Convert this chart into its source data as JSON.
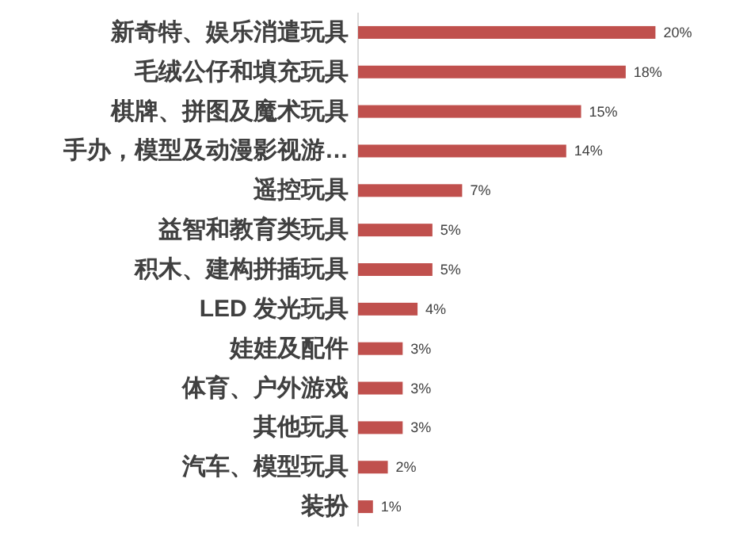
{
  "chart_data": {
    "type": "bar",
    "orientation": "horizontal",
    "categories": [
      "新奇特、娱乐消遣玩具",
      "毛绒公仔和填充玩具",
      "棋牌、拼图及魔术玩具",
      "手办，模型及动漫影视游…",
      "遥控玩具",
      "益智和教育类玩具",
      "积木、建构拼插玩具",
      "LED 发光玩具",
      "娃娃及配件",
      "体育、户外游戏",
      "其他玩具",
      "汽车、模型玩具",
      "装扮"
    ],
    "values": [
      20,
      18,
      15,
      14,
      7,
      5,
      5,
      4,
      3,
      3,
      3,
      2,
      1
    ],
    "value_labels": [
      "20%",
      "18%",
      "15%",
      "14%",
      "7%",
      "5%",
      "5%",
      "4%",
      "3%",
      "3%",
      "3%",
      "2%",
      "1%"
    ],
    "color": "#c0504d"
  }
}
